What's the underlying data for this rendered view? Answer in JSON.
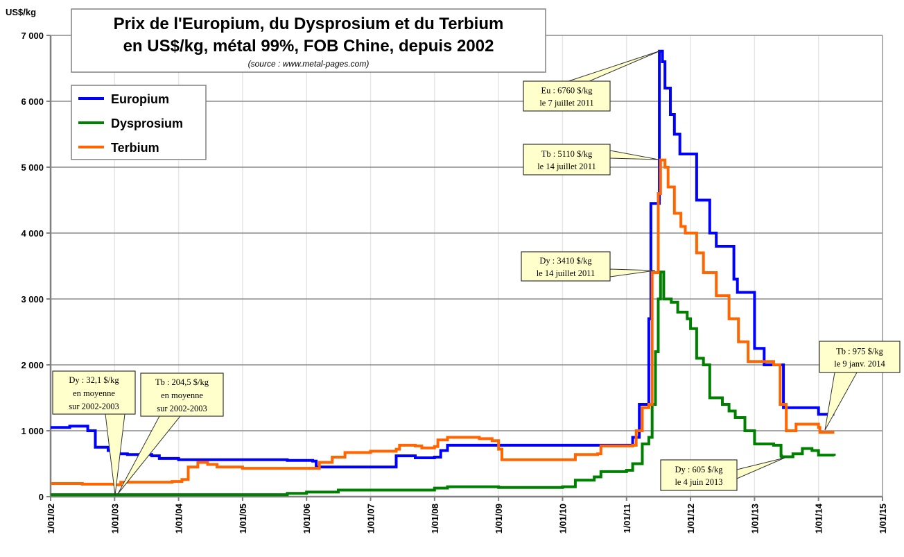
{
  "chart_data": {
    "type": "line",
    "title": "Prix de l'Europium, du Dysprosium et du Terbium",
    "title_line2": "en US$/kg, métal 99%, FOB Chine, depuis 2002",
    "subtitle": "(source : www.metal-pages.com)",
    "ylabel": "US$/kg",
    "xlabel": "",
    "ylim": [
      0,
      7000
    ],
    "xlim": [
      "2002-01-01",
      "2015-01-01"
    ],
    "y_ticks": [
      "0",
      "1 000",
      "2 000",
      "3 000",
      "4 000",
      "5 000",
      "6 000",
      "7 000"
    ],
    "x_ticks": [
      "1/01/02",
      "1/01/03",
      "1/01/04",
      "1/01/05",
      "1/01/06",
      "1/01/07",
      "1/01/08",
      "1/01/09",
      "1/01/10",
      "1/01/11",
      "1/01/12",
      "1/01/13",
      "1/01/14",
      "1/01/15"
    ],
    "grid": true,
    "legend_position": "top-left",
    "series": [
      {
        "name": "Europium",
        "color": "#0000ff",
        "points": [
          [
            "2002-01-01",
            1050
          ],
          [
            "2002-04-20",
            1070
          ],
          [
            "2002-08-01",
            1000
          ],
          [
            "2002-09-13",
            750
          ],
          [
            "2002-11-25",
            700
          ],
          [
            "2003-01-01",
            650
          ],
          [
            "2003-03-15",
            640
          ],
          [
            "2003-08-01",
            620
          ],
          [
            "2003-09-13",
            580
          ],
          [
            "2004-01-01",
            560
          ],
          [
            "2005-09-13",
            550
          ],
          [
            "2006-02-05",
            540
          ],
          [
            "2006-02-25",
            450
          ],
          [
            "2007-04-20",
            450
          ],
          [
            "2007-05-27",
            620
          ],
          [
            "2007-09-13",
            590
          ],
          [
            "2008-01-01",
            600
          ],
          [
            "2008-02-05",
            700
          ],
          [
            "2008-03-15",
            780
          ],
          [
            "2011-01-01",
            780
          ],
          [
            "2011-02-05",
            900
          ],
          [
            "2011-03-15",
            1400
          ],
          [
            "2011-05-08",
            2700
          ],
          [
            "2011-05-20",
            4450
          ],
          [
            "2011-07-07",
            6760
          ],
          [
            "2011-07-25",
            6600
          ],
          [
            "2011-08-08",
            6200
          ],
          [
            "2011-09-08",
            5800
          ],
          [
            "2011-10-01",
            5500
          ],
          [
            "2011-11-01",
            5200
          ],
          [
            "2012-02-05",
            4500
          ],
          [
            "2012-04-20",
            4000
          ],
          [
            "2012-05-27",
            3800
          ],
          [
            "2012-09-05",
            3300
          ],
          [
            "2012-09-25",
            3100
          ],
          [
            "2013-01-01",
            2250
          ],
          [
            "2013-02-25",
            2000
          ],
          [
            "2013-06-15",
            1350
          ],
          [
            "2014-01-01",
            1250
          ],
          [
            "2014-04-01",
            1250
          ]
        ]
      },
      {
        "name": "Dysprosium",
        "color": "#008000",
        "points": [
          [
            "2002-01-01",
            30
          ],
          [
            "2005-09-13",
            50
          ],
          [
            "2006-01-01",
            70
          ],
          [
            "2006-07-01",
            100
          ],
          [
            "2007-07-01",
            100
          ],
          [
            "2008-01-01",
            130
          ],
          [
            "2008-03-15",
            150
          ],
          [
            "2009-01-01",
            140
          ],
          [
            "2010-01-01",
            150
          ],
          [
            "2010-03-15",
            250
          ],
          [
            "2010-07-01",
            300
          ],
          [
            "2010-08-08",
            380
          ],
          [
            "2011-01-01",
            400
          ],
          [
            "2011-02-05",
            500
          ],
          [
            "2011-04-01",
            800
          ],
          [
            "2011-05-08",
            900
          ],
          [
            "2011-05-27",
            1400
          ],
          [
            "2011-06-15",
            2200
          ],
          [
            "2011-07-01",
            3000
          ],
          [
            "2011-07-14",
            3410
          ],
          [
            "2011-08-01",
            3000
          ],
          [
            "2011-09-13",
            2950
          ],
          [
            "2011-10-20",
            2800
          ],
          [
            "2011-12-13",
            2700
          ],
          [
            "2012-01-01",
            2550
          ],
          [
            "2012-02-05",
            2100
          ],
          [
            "2012-03-15",
            2000
          ],
          [
            "2012-04-20",
            1500
          ],
          [
            "2012-07-01",
            1400
          ],
          [
            "2012-08-08",
            1300
          ],
          [
            "2012-09-13",
            1200
          ],
          [
            "2012-11-07",
            1000
          ],
          [
            "2013-01-01",
            800
          ],
          [
            "2013-04-20",
            780
          ],
          [
            "2013-06-01",
            620
          ],
          [
            "2013-06-04",
            605
          ],
          [
            "2013-08-08",
            650
          ],
          [
            "2013-10-01",
            730
          ],
          [
            "2013-11-25",
            700
          ],
          [
            "2014-01-01",
            630
          ],
          [
            "2014-04-01",
            620
          ]
        ]
      },
      {
        "name": "Terbium",
        "color": "#ff6600",
        "points": [
          [
            "2002-01-01",
            200
          ],
          [
            "2002-07-01",
            190
          ],
          [
            "2003-01-01",
            180
          ],
          [
            "2003-02-05",
            220
          ],
          [
            "2003-11-25",
            230
          ],
          [
            "2004-01-20",
            260
          ],
          [
            "2004-02-25",
            450
          ],
          [
            "2004-04-20",
            520
          ],
          [
            "2004-06-15",
            490
          ],
          [
            "2004-08-08",
            450
          ],
          [
            "2005-01-01",
            430
          ],
          [
            "2006-01-01",
            430
          ],
          [
            "2006-03-15",
            520
          ],
          [
            "2006-05-27",
            600
          ],
          [
            "2006-08-08",
            670
          ],
          [
            "2007-01-01",
            690
          ],
          [
            "2007-05-27",
            720
          ],
          [
            "2007-06-15",
            780
          ],
          [
            "2007-09-13",
            770
          ],
          [
            "2007-10-20",
            740
          ],
          [
            "2008-01-01",
            760
          ],
          [
            "2008-01-20",
            860
          ],
          [
            "2008-03-15",
            900
          ],
          [
            "2008-09-13",
            880
          ],
          [
            "2008-11-25",
            850
          ],
          [
            "2009-01-01",
            720
          ],
          [
            "2009-01-20",
            560
          ],
          [
            "2010-01-01",
            560
          ],
          [
            "2010-03-15",
            640
          ],
          [
            "2010-07-20",
            650
          ],
          [
            "2010-08-08",
            770
          ],
          [
            "2011-02-05",
            780
          ],
          [
            "2011-02-25",
            1000
          ],
          [
            "2011-04-01",
            1350
          ],
          [
            "2011-05-08",
            1400
          ],
          [
            "2011-05-27",
            3400
          ],
          [
            "2011-07-01",
            4600
          ],
          [
            "2011-07-14",
            5110
          ],
          [
            "2011-08-08",
            5000
          ],
          [
            "2011-08-26",
            4700
          ],
          [
            "2011-10-01",
            4300
          ],
          [
            "2011-11-07",
            4100
          ],
          [
            "2011-12-02",
            4000
          ],
          [
            "2012-02-05",
            3700
          ],
          [
            "2012-03-15",
            3400
          ],
          [
            "2012-05-27",
            3050
          ],
          [
            "2012-08-08",
            2700
          ],
          [
            "2012-10-01",
            2350
          ],
          [
            "2012-11-25",
            2050
          ],
          [
            "2013-04-20",
            2000
          ],
          [
            "2013-05-27",
            1400
          ],
          [
            "2013-07-01",
            1000
          ],
          [
            "2013-08-26",
            1100
          ],
          [
            "2014-01-01",
            1050
          ],
          [
            "2014-01-09",
            975
          ],
          [
            "2014-04-01",
            975
          ]
        ]
      }
    ],
    "annotations": [
      {
        "id": "eu-peak",
        "lines": [
          "Eu : 6760 $/kg",
          "le 7 juillet 2011"
        ]
      },
      {
        "id": "tb-peak",
        "lines": [
          "Tb : 5110 $/kg",
          "le 14 juillet 2011"
        ]
      },
      {
        "id": "dy-peak",
        "lines": [
          "Dy : 3410 $/kg",
          "le 14 juillet 2011"
        ]
      },
      {
        "id": "dy-avg",
        "lines": [
          "Dy : 32,1 $/kg",
          "en moyenne",
          "sur 2002-2003"
        ]
      },
      {
        "id": "tb-avg",
        "lines": [
          "Tb : 204,5 $/kg",
          "en moyenne",
          "sur 2002-2003"
        ]
      },
      {
        "id": "tb-2014",
        "lines": [
          "Tb : 975 $/kg",
          "le 9 janv. 2014"
        ]
      },
      {
        "id": "dy-2013",
        "lines": [
          "Dy : 605 $/kg",
          "le 4 juin 2013"
        ]
      }
    ]
  }
}
